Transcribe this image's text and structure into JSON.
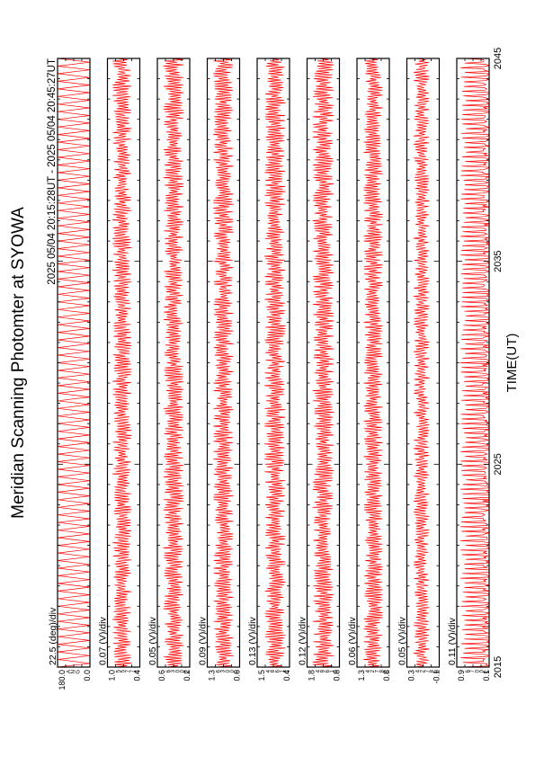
{
  "chart_data": {
    "type": "line",
    "orientation": "rotated-90-ccw",
    "title": "Meridian Scanning Photomter at SYOWA",
    "subtitle": "2025 05/04 20:15:28UT - 2025 05/04 20:45:27UT",
    "xlabel": "TIME(UT)",
    "x_range": [
      2015,
      2045
    ],
    "x_ticks": [
      "2015",
      "2025",
      "2035",
      "2045"
    ],
    "grid": false,
    "legend": "none",
    "line_color": "#ff0000",
    "panels": [
      {
        "scale_label": "22.5 (deg)/div",
        "ylim": [
          0.0,
          180.0
        ],
        "y_tick_labels": [
          "180.0",
          "0.0"
        ],
        "channel_codes": [
          "A",
          "N",
          "G"
        ],
        "pattern": "scan-angle",
        "center": 0.5,
        "amplitude": 0.5,
        "cycles": 40
      },
      {
        "scale_label": "0.07 (V)/div",
        "ylim": [
          0.4,
          1.0
        ],
        "y_tick_labels": [
          "1.0",
          "0.4"
        ],
        "channel_codes": [
          "5",
          "5",
          "7",
          "7",
          "C"
        ],
        "pattern": "noise",
        "center": 0.55,
        "amplitude": 0.3,
        "cycles": 115
      },
      {
        "scale_label": "0.05 (V)/div",
        "ylim": [
          0.2,
          0.6
        ],
        "y_tick_labels": [
          "0.6",
          "0.2"
        ],
        "channel_codes": [
          "6",
          "3",
          "0",
          "0",
          "C"
        ],
        "pattern": "noise",
        "center": 0.5,
        "amplitude": 0.32,
        "cycles": 120
      },
      {
        "scale_label": "0.09 (V)/div",
        "ylim": [
          0.6,
          1.3
        ],
        "y_tick_labels": [
          "1.3",
          "0.6"
        ],
        "channel_codes": [
          "6",
          "3",
          "0",
          "0",
          "H"
        ],
        "pattern": "noise",
        "center": 0.5,
        "amplitude": 0.32,
        "cycles": 120
      },
      {
        "scale_label": "0.13 (V)/div",
        "ylim": [
          0.4,
          1.5
        ],
        "y_tick_labels": [
          "1.5",
          "0.4"
        ],
        "channel_codes": [
          "4",
          "8",
          "6",
          "1",
          "C"
        ],
        "pattern": "noise",
        "center": 0.45,
        "amplitude": 0.33,
        "cycles": 120
      },
      {
        "scale_label": "0.12 (V)/div",
        "ylim": [
          0.8,
          1.8
        ],
        "y_tick_labels": [
          "1.8",
          "0.8"
        ],
        "channel_codes": [
          "4",
          "8",
          "6",
          "1",
          "H"
        ],
        "pattern": "noise",
        "center": 0.5,
        "amplitude": 0.33,
        "cycles": 120
      },
      {
        "scale_label": "0.06 (V)/div",
        "ylim": [
          0.8,
          1.3
        ],
        "y_tick_labels": [
          "1.3",
          "0.8"
        ],
        "channel_codes": [
          "4",
          "2",
          "7",
          "8",
          "C"
        ],
        "pattern": "noise",
        "center": 0.5,
        "amplitude": 0.3,
        "cycles": 120
      },
      {
        "scale_label": "0.05 (V)/div",
        "ylim": [
          -0.1,
          0.3
        ],
        "y_tick_labels": [
          "0.3",
          "-0.1"
        ],
        "channel_codes": [
          "4",
          "2",
          "7",
          "8",
          "H"
        ],
        "pattern": "noise",
        "center": 0.55,
        "amplitude": 0.25,
        "cycles": 110
      },
      {
        "scale_label": "0.11 (V)/div",
        "ylim": [
          0.1,
          0.9
        ],
        "y_tick_labels": [
          "0.9",
          "0.1"
        ],
        "channel_codes": [
          "6",
          "7",
          "0",
          "0",
          "C"
        ],
        "pattern": "comb",
        "center": 0.35,
        "amplitude": 0.45,
        "cycles": 130
      }
    ]
  }
}
